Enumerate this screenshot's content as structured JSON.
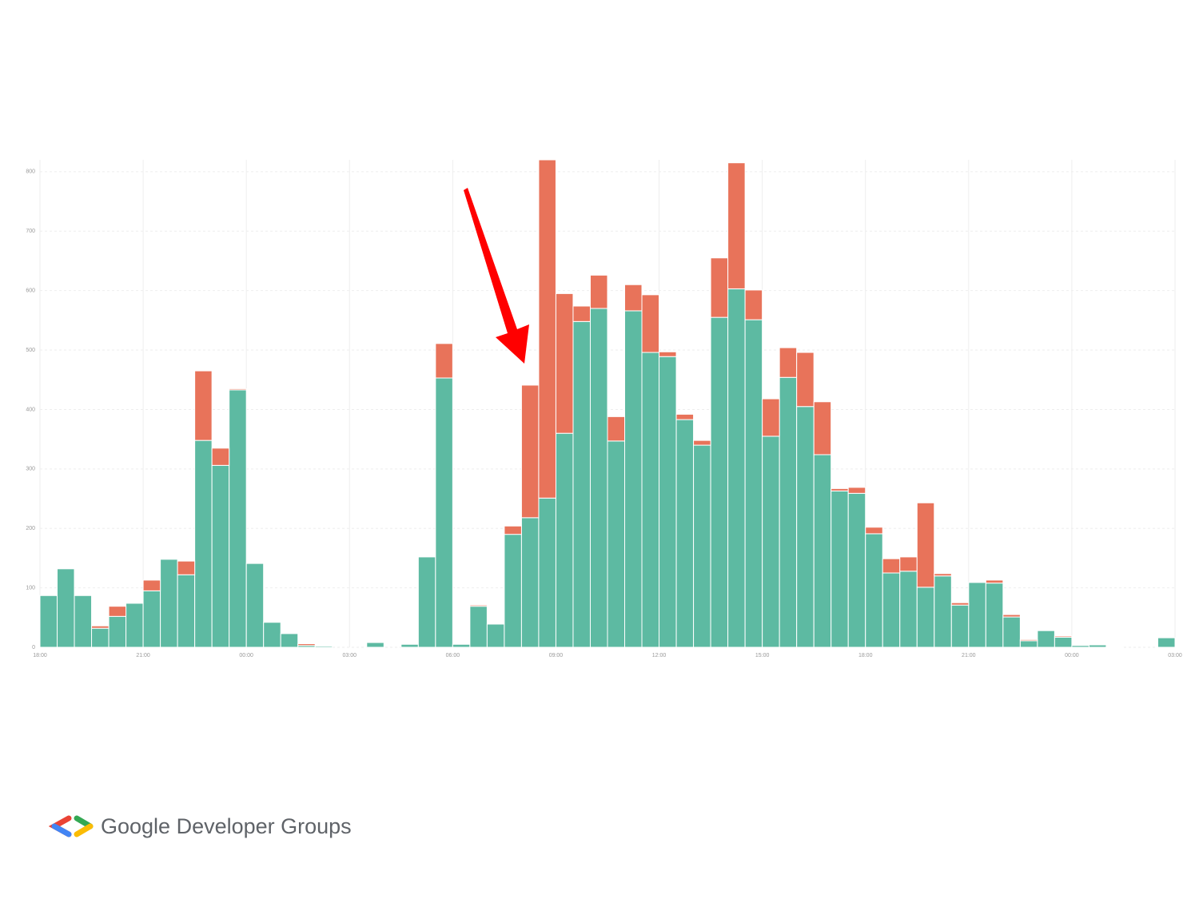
{
  "chart_data": {
    "type": "stacked-histogram",
    "series": [
      {
        "color": "#5dbaa2",
        "values": [
          87,
          132,
          87,
          32,
          52,
          74,
          95,
          148,
          122,
          348,
          306,
          433,
          141,
          42,
          23,
          3,
          2,
          0,
          0,
          8,
          0,
          5,
          152,
          453,
          5,
          69,
          39,
          190,
          218,
          251,
          360,
          548,
          570,
          347,
          566,
          496,
          489,
          383,
          340,
          555,
          603,
          551,
          355,
          454,
          405,
          324,
          263,
          259,
          191,
          125,
          128,
          101,
          120,
          71,
          109,
          108,
          51,
          11,
          28,
          17,
          3,
          4,
          1,
          0,
          0,
          16
        ]
      },
      {
        "color": "#e8735a",
        "values": [
          0,
          0,
          0,
          4,
          17,
          0,
          18,
          0,
          23,
          117,
          29,
          2,
          0,
          0,
          0,
          3,
          0,
          0,
          0,
          0,
          0,
          0,
          0,
          58,
          0,
          2,
          0,
          14,
          223,
          569,
          235,
          26,
          56,
          41,
          44,
          97,
          8,
          9,
          8,
          100,
          212,
          50,
          63,
          50,
          91,
          89,
          4,
          10,
          11,
          24,
          24,
          142,
          4,
          4,
          0,
          5,
          4,
          2,
          0,
          2,
          0,
          0,
          0,
          0,
          0,
          0
        ]
      }
    ],
    "xlim": [
      0,
      66
    ],
    "xticks": [
      {
        "value": 0,
        "label": "18:00"
      },
      {
        "value": 6,
        "label": "21:00"
      },
      {
        "value": 12,
        "label": "00:00"
      },
      {
        "value": 18,
        "label": "03:00"
      },
      {
        "value": 24,
        "label": "06:00"
      },
      {
        "value": 30,
        "label": "09:00"
      },
      {
        "value": 36,
        "label": "12:00"
      },
      {
        "value": 42,
        "label": "15:00"
      },
      {
        "value": 48,
        "label": "18:00"
      },
      {
        "value": 54,
        "label": "21:00"
      },
      {
        "value": 60,
        "label": "00:00"
      },
      {
        "value": 66,
        "label": "03:00"
      }
    ],
    "ylim": [
      0,
      820
    ],
    "yticks": [
      0,
      100,
      200,
      300,
      400,
      500,
      600,
      700,
      800
    ],
    "grid": true
  },
  "footer": {
    "brand": "Google Developer Groups"
  }
}
